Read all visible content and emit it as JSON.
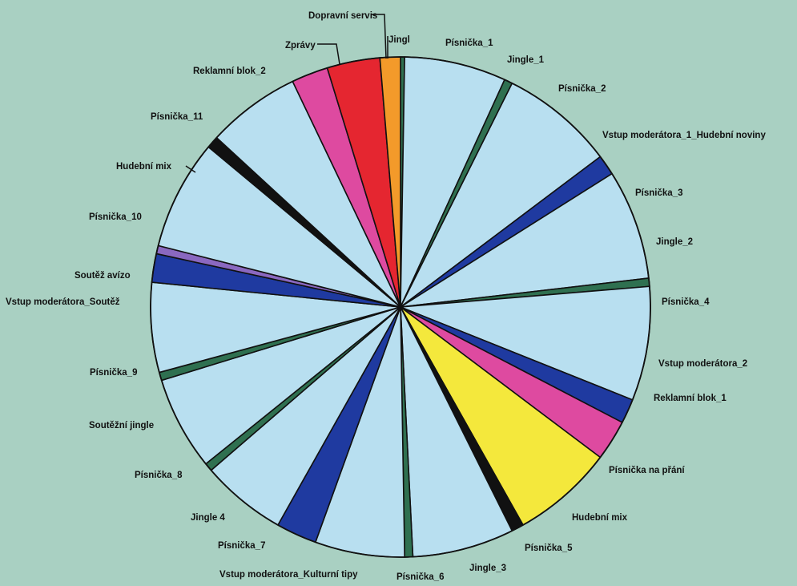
{
  "chart_data": {
    "type": "pie",
    "start_angle_deg": 90,
    "direction": "clockwise",
    "unit": "degrees",
    "slices": [
      {
        "label": "Jingl",
        "value": 1,
        "color": "#2f7050"
      },
      {
        "label": "Písnička_1",
        "value": 25,
        "color": "#b8dff0"
      },
      {
        "label": "Jingle_1",
        "value": 2,
        "color": "#2f7050"
      },
      {
        "label": "Písnička_2",
        "value": 28,
        "color": "#b8dff0"
      },
      {
        "label": "Vstup moderátora_1_Hudební noviny",
        "value": 5,
        "color": "#1f3aa0"
      },
      {
        "label": "Písnička_3",
        "value": 27,
        "color": "#b8dff0"
      },
      {
        "label": "Jingle_2",
        "value": 2,
        "color": "#2f7050"
      },
      {
        "label": "Písnička_4",
        "value": 28,
        "color": "#b8dff0"
      },
      {
        "label": "Vstup moderátora_2",
        "value": 6,
        "color": "#1f3aa0"
      },
      {
        "label": "Reklamní blok_1",
        "value": 10,
        "color": "#de4aa0"
      },
      {
        "label": "Písnička na přání",
        "value": 25,
        "color": "#f4e83c"
      },
      {
        "label": "Hudební mix",
        "value": 3,
        "color": "#111111"
      },
      {
        "label": "Písnička_5",
        "value": 25,
        "color": "#b8dff0"
      },
      {
        "label": "Jingle_3",
        "value": 2,
        "color": "#2f7050"
      },
      {
        "label": "Písnička_6",
        "value": 22,
        "color": "#b8dff0"
      },
      {
        "label": "Vstup moderátora_Kulturní tipy",
        "value": 10,
        "color": "#1f3aa0"
      },
      {
        "label": "Písnička_7",
        "value": 21,
        "color": "#b8dff0"
      },
      {
        "label": "Jingle 4",
        "value": 2,
        "color": "#2f7050"
      },
      {
        "label": "Písnička_8",
        "value": 23,
        "color": "#b8dff0"
      },
      {
        "label": "Soutěžní jingle",
        "value": 2,
        "color": "#2f7050"
      },
      {
        "label": "Písnička_9",
        "value": 22,
        "color": "#b8dff0"
      },
      {
        "label": "Vstup moderátora_Soutěž",
        "value": 7,
        "color": "#1f3aa0"
      },
      {
        "label": "Soutěž avízo",
        "value": 2,
        "color": "#8a68c0"
      },
      {
        "label": "Písnička_10",
        "value": 27,
        "color": "#b8dff0"
      },
      {
        "label": "Hudební mix",
        "value": 3,
        "color": "#111111"
      },
      {
        "label": "Písnička_11",
        "value": 23,
        "color": "#b8dff0"
      },
      {
        "label": "Reklamní blok_2",
        "value": 9,
        "color": "#de4aa0"
      },
      {
        "label": "Zprávy",
        "value": 13,
        "color": "#e52630"
      },
      {
        "label": "Dopravní servis",
        "value": 5,
        "color": "#f39a2a"
      }
    ]
  }
}
